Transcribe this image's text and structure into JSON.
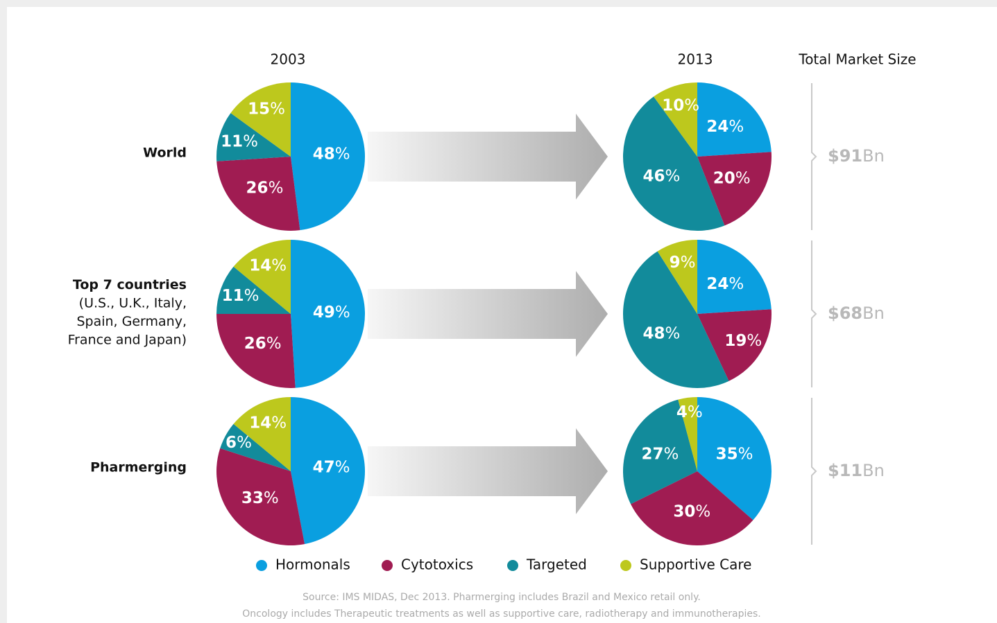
{
  "column_labels": [
    "2003",
    "2013"
  ],
  "market_size_header": "Total Market Size",
  "legend": {
    "categories": [
      "Hormonals",
      "Cytotoxics",
      "Targeted",
      "Supportive Care"
    ],
    "colors": [
      "#0a9fe0",
      "#a01c52",
      "#128b9b",
      "#bdc81d"
    ]
  },
  "rows": [
    {
      "label": "World",
      "note_lines": [],
      "market_size": {
        "amount": "$91",
        "unit": "Bn"
      }
    },
    {
      "label": "Top 7 countries",
      "note_lines": [
        "(U.S., U.K., Italy,",
        "Spain, Germany,",
        "France and Japan)"
      ],
      "market_size": {
        "amount": "$68",
        "unit": "Bn"
      }
    },
    {
      "label": "Pharmerging",
      "note_lines": [],
      "market_size": {
        "amount": "$11",
        "unit": "Bn"
      }
    }
  ],
  "chart_data": [
    {
      "type": "pie",
      "values": [
        48,
        26,
        11,
        15
      ],
      "unit": "%"
    },
    {
      "type": "pie",
      "values": [
        24,
        20,
        46,
        10
      ],
      "unit": "%"
    },
    {
      "type": "pie",
      "values": [
        49,
        26,
        11,
        14
      ],
      "unit": "%"
    },
    {
      "type": "pie",
      "values": [
        24,
        19,
        48,
        9
      ],
      "unit": "%"
    },
    {
      "type": "pie",
      "values": [
        47,
        33,
        6,
        14
      ],
      "unit": "%"
    },
    {
      "type": "pie",
      "values": [
        35,
        30,
        27,
        4
      ],
      "unit": "%"
    }
  ],
  "source_lines": [
    "Source: IMS MIDAS, Dec 2013. Pharmerging includes Brazil and Mexico retail only.",
    "Oncology includes Therapeutic treatments as well as supportive care, radiotherapy and immunotherapies."
  ]
}
